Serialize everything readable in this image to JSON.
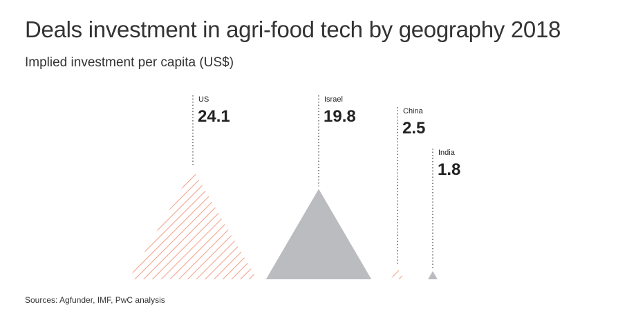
{
  "header": {
    "title": "Deals investment in agri-food tech by geography 2018",
    "subtitle": "Implied investment per capita (US$)"
  },
  "footer": {
    "source": "Sources: Agfunder, IMF, PwC analysis"
  },
  "colors": {
    "hatch": "#f2a58e",
    "solid": "#bbbcbf",
    "leader": "#555555"
  },
  "chart_data": {
    "type": "bar",
    "title": "Deals investment in agri-food tech by geography 2018",
    "subtitle": "Implied investment per capita (US$)",
    "categories": [
      "US",
      "Israel",
      "China",
      "India"
    ],
    "values": [
      24.1,
      19.8,
      2.5,
      1.8
    ],
    "value_labels": [
      "24.1",
      "19.8",
      "2.5",
      "1.8"
    ],
    "fill_styles": [
      "hatched",
      "solid",
      "hatched",
      "solid"
    ],
    "shape": "triangle",
    "source": "Sources: Agfunder, IMF, PwC analysis"
  }
}
